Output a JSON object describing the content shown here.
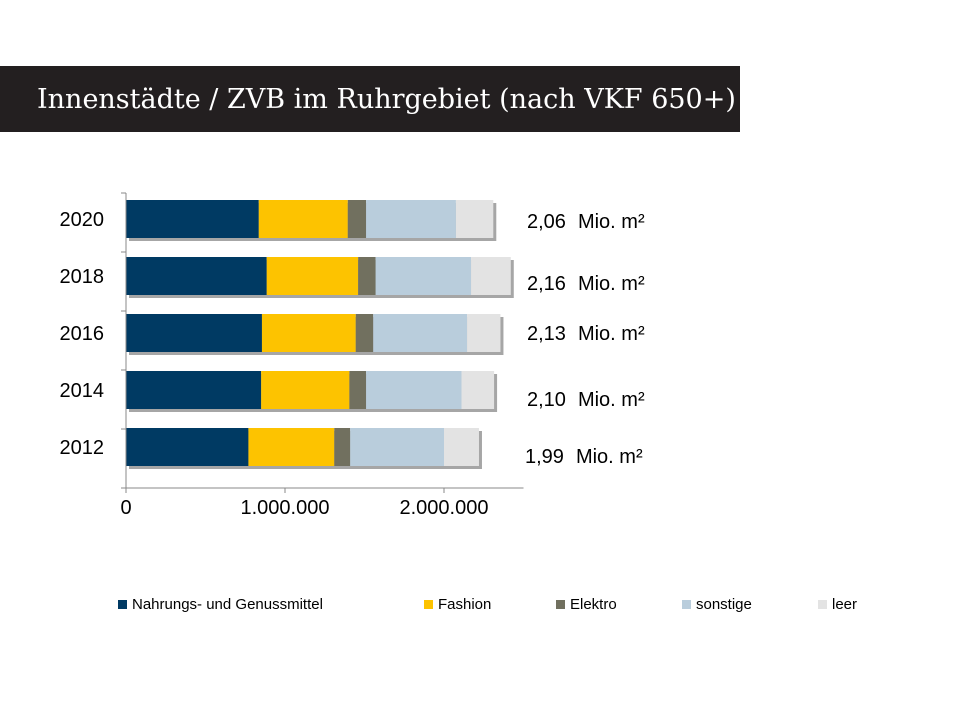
{
  "title": "Innenstädte / ZVB im Ruhrgebiet (nach VKF 650+)",
  "chart_data": {
    "type": "bar",
    "orientation": "horizontal",
    "stacked": true,
    "categories": [
      "2020",
      "2018",
      "2016",
      "2014",
      "2012"
    ],
    "series": [
      {
        "name": "Nahrungs- und Genussmittel",
        "color": "#003a63",
        "values": [
          835000,
          885000,
          855000,
          850000,
          770000
        ]
      },
      {
        "name": "Fashion",
        "color": "#fdc300",
        "values": [
          560000,
          575000,
          590000,
          555000,
          540000
        ]
      },
      {
        "name": "Elektro",
        "color": "#71705f",
        "values": [
          115000,
          110000,
          110000,
          105000,
          100000
        ]
      },
      {
        "name": "sonstige",
        "color": "#b9cddc",
        "values": [
          565000,
          600000,
          590000,
          600000,
          590000
        ]
      },
      {
        "name": "leer",
        "color": "#e3e3e3",
        "values": [
          235000,
          250000,
          210000,
          205000,
          220000
        ]
      }
    ],
    "x_ticks": [
      "0",
      "1.000.000",
      "2.000.000"
    ],
    "x_tick_values": [
      0,
      1000000,
      2000000
    ],
    "xlim": [
      0,
      2500000
    ],
    "grid": false,
    "legend_position": "bottom",
    "annotations": [
      {
        "value": "2,06",
        "unit": "Mio. m²"
      },
      {
        "value": "2,16",
        "unit": "Mio. m²"
      },
      {
        "value": "2,13",
        "unit": "Mio. m²"
      },
      {
        "value": "2,10",
        "unit": "Mio. m²"
      },
      {
        "value": "1,99",
        "unit": "Mio. m²"
      }
    ]
  }
}
